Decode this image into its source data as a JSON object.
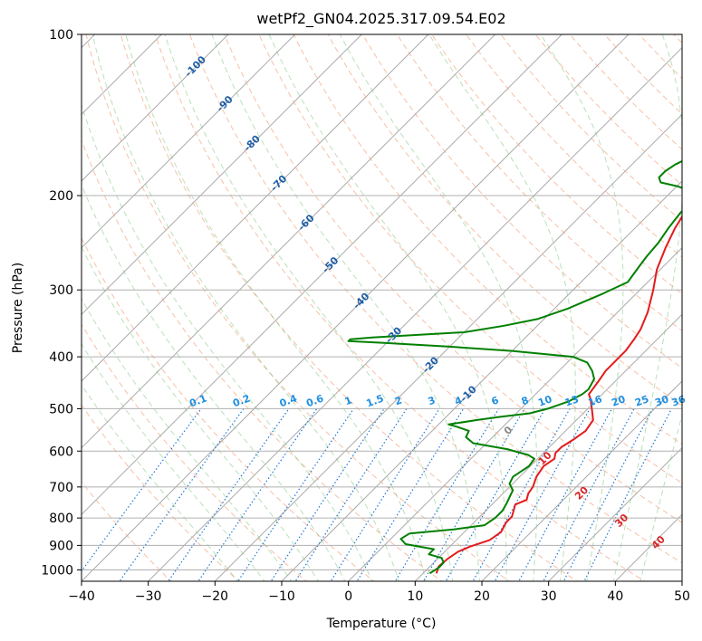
{
  "chart_data": {
    "type": "line",
    "title": "wetPf2_GN04.2025.317.09.54.E02",
    "xlabel": "Temperature (°C)",
    "ylabel": "Pressure (hPa)",
    "xlim": [
      -40,
      50
    ],
    "ylim": [
      1050,
      100
    ],
    "y_scale": "log",
    "grid": true,
    "x_ticks": [
      -40,
      -30,
      -20,
      -10,
      0,
      10,
      20,
      30,
      40,
      50
    ],
    "y_ticks": [
      1000,
      900,
      800,
      700,
      600,
      500,
      400,
      300,
      200,
      100
    ],
    "isotherm_labels": [
      {
        "label": "-100",
        "t": -100,
        "p": 115
      },
      {
        "label": "-90",
        "t": -90,
        "p": 135
      },
      {
        "label": "-80",
        "t": -80,
        "p": 160
      },
      {
        "label": "-70",
        "t": -70,
        "p": 190
      },
      {
        "label": "-60",
        "t": -60,
        "p": 225
      },
      {
        "label": "-50",
        "t": -50,
        "p": 270
      },
      {
        "label": "-40",
        "t": -40,
        "p": 315
      },
      {
        "label": "-30",
        "t": -30,
        "p": 365
      },
      {
        "label": "-20",
        "t": -20,
        "p": 415
      },
      {
        "label": "-10",
        "t": -10,
        "p": 470
      }
    ],
    "mixing_ratio_labels": [
      {
        "label": "0.1",
        "t": -22.5
      },
      {
        "label": "0.2",
        "t": -16
      },
      {
        "label": "0.4",
        "t": -9
      },
      {
        "label": "0.6",
        "t": -5
      },
      {
        "label": "1",
        "t": 0
      },
      {
        "label": "1.5",
        "t": 4
      },
      {
        "label": "2",
        "t": 7.5
      },
      {
        "label": "3",
        "t": 12.5
      },
      {
        "label": "4",
        "t": 16.5
      },
      {
        "label": "6",
        "t": 22
      },
      {
        "label": "8",
        "t": 26.5
      },
      {
        "label": "10",
        "t": 29.5
      },
      {
        "label": "13",
        "t": 33.5
      },
      {
        "label": "16",
        "t": 37
      },
      {
        "label": "20",
        "t": 40.5
      },
      {
        "label": "25",
        "t": 44
      },
      {
        "label": "30",
        "t": 47
      },
      {
        "label": "36",
        "t": 49.5
      }
    ],
    "moist_adiabat_labels": [
      {
        "label": "0",
        "t": 24,
        "p": 550,
        "color": "#888888"
      },
      {
        "label": "10",
        "t": 29.5,
        "p": 620,
        "color": "#d62728"
      },
      {
        "label": "20",
        "t": 35,
        "p": 720,
        "color": "#d62728"
      },
      {
        "label": "30",
        "t": 41,
        "p": 810,
        "color": "#d62728"
      },
      {
        "label": "40",
        "t": 46.5,
        "p": 890,
        "color": "#d62728"
      }
    ],
    "series": [
      {
        "color": "#e41a1c",
        "points": [
          [
            12,
            1015
          ],
          [
            11.3,
            985
          ],
          [
            11.5,
            955
          ],
          [
            12,
            925
          ],
          [
            13,
            905
          ],
          [
            15,
            880
          ],
          [
            15.5,
            850
          ],
          [
            14.8,
            815
          ],
          [
            14.8,
            795
          ],
          [
            14,
            770
          ],
          [
            13.5,
            755
          ],
          [
            14.5,
            740
          ],
          [
            13.8,
            720
          ],
          [
            13.5,
            700
          ],
          [
            12.5,
            670
          ],
          [
            12,
            640
          ],
          [
            12.5,
            620
          ],
          [
            11.8,
            605
          ],
          [
            11.8,
            590
          ],
          [
            12.5,
            570
          ],
          [
            13,
            550
          ],
          [
            12.5,
            525
          ],
          [
            11,
            505
          ],
          [
            9,
            480
          ],
          [
            8,
            470
          ],
          [
            7.5,
            445
          ],
          [
            7,
            425
          ],
          [
            7,
            405
          ],
          [
            7,
            390
          ],
          [
            6.5,
            370
          ],
          [
            6,
            355
          ],
          [
            4.5,
            330
          ],
          [
            2,
            300
          ],
          [
            -0.5,
            275
          ],
          [
            -2.5,
            250
          ],
          [
            -4,
            230
          ],
          [
            -5.2,
            210
          ],
          [
            -5.5,
            200
          ],
          [
            -4,
            195
          ],
          [
            0,
            190
          ],
          [
            5,
            185
          ],
          [
            8.5,
            180
          ],
          [
            11,
            175
          ],
          [
            13.5,
            168
          ],
          [
            14.5,
            160
          ],
          [
            15,
            153
          ],
          [
            15.5,
            148
          ],
          [
            17,
            140
          ],
          [
            18,
            133
          ],
          [
            19.5,
            127
          ],
          [
            21,
            122
          ],
          [
            21.5,
            115
          ],
          [
            22,
            107
          ],
          [
            22.5,
            100
          ]
        ]
      },
      {
        "color": "#008000",
        "points": [
          [
            11,
            1015
          ],
          [
            11.5,
            990
          ],
          [
            11.5,
            970
          ],
          [
            10.5,
            950
          ],
          [
            8,
            935
          ],
          [
            8,
            915
          ],
          [
            3,
            895
          ],
          [
            1.5,
            875
          ],
          [
            2,
            855
          ],
          [
            8,
            840
          ],
          [
            12,
            825
          ],
          [
            12.5,
            800
          ],
          [
            12.5,
            775
          ],
          [
            12,
            750
          ],
          [
            11.5,
            730
          ],
          [
            11,
            710
          ],
          [
            9.5,
            690
          ],
          [
            9,
            670
          ],
          [
            9.8,
            640
          ],
          [
            9.5,
            620
          ],
          [
            8,
            610
          ],
          [
            4,
            595
          ],
          [
            -2,
            580
          ],
          [
            -4,
            565
          ],
          [
            -4.5,
            550
          ],
          [
            -7,
            540
          ],
          [
            -8.5,
            535
          ],
          [
            -5,
            525
          ],
          [
            -2,
            518
          ],
          [
            2,
            510
          ],
          [
            4,
            500
          ],
          [
            6,
            485
          ],
          [
            7,
            470
          ],
          [
            7.2,
            460
          ],
          [
            6.5,
            440
          ],
          [
            5,
            425
          ],
          [
            3,
            410
          ],
          [
            0,
            400
          ],
          [
            -10,
            390
          ],
          [
            -20,
            383
          ],
          [
            -30,
            377
          ],
          [
            -36,
            374
          ],
          [
            -36,
            371
          ],
          [
            -33,
            368
          ],
          [
            -20,
            360
          ],
          [
            -15,
            350
          ],
          [
            -11,
            340
          ],
          [
            -8,
            325
          ],
          [
            -5,
            305
          ],
          [
            -3,
            290
          ],
          [
            -3.5,
            275
          ],
          [
            -4,
            260
          ],
          [
            -4.3,
            245
          ],
          [
            -5,
            230
          ],
          [
            -5.5,
            215
          ],
          [
            -5.2,
            205
          ],
          [
            -6,
            200
          ],
          [
            -8,
            195
          ],
          [
            -10,
            192
          ],
          [
            -13,
            189
          ],
          [
            -14,
            185
          ],
          [
            -14,
            180
          ],
          [
            -13.5,
            175
          ],
          [
            -12.5,
            170
          ],
          [
            -11,
            165
          ],
          [
            -9,
            158
          ],
          [
            -8,
            150
          ],
          [
            -7.5,
            140
          ],
          [
            -7,
            130
          ],
          [
            -6,
            122
          ],
          [
            -4,
            115
          ],
          [
            -2,
            110
          ],
          [
            0,
            104
          ],
          [
            1,
            100
          ]
        ]
      }
    ]
  }
}
